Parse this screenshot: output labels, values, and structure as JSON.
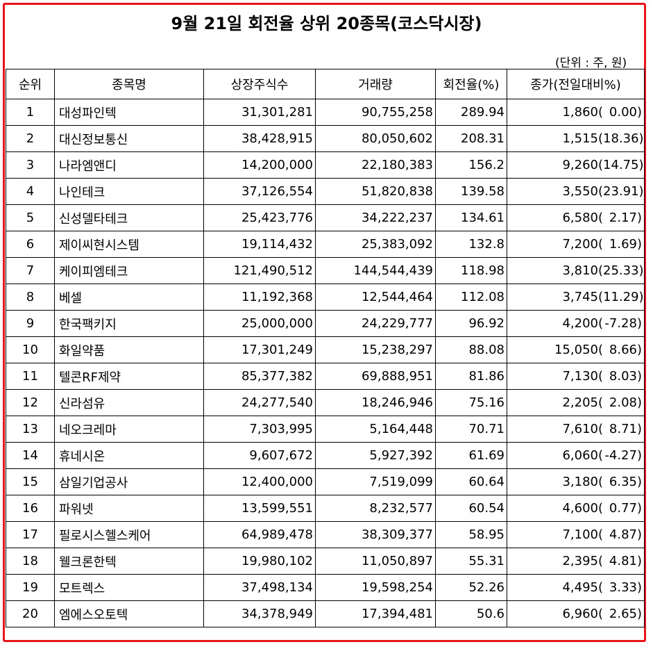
{
  "title": "9월 21일 회전율 상위 20종목(코스닥시장)",
  "unit": "(단위 : 주, 원)",
  "headers": {
    "rank": "순위",
    "name": "종목명",
    "listed": "상장주식수",
    "volume": "거래량",
    "turnover": "회전율(%)",
    "close": "종가(전일대비%)"
  },
  "rows": [
    {
      "rank": "1",
      "name": "대성파인텍",
      "listed": "31,301,281",
      "volume": "90,755,258",
      "turnover": "289.94",
      "price": "1,860(",
      "change": "0.00)"
    },
    {
      "rank": "2",
      "name": "대신정보통신",
      "listed": "38,428,915",
      "volume": "80,050,602",
      "turnover": "208.31",
      "price": "1,515(",
      "change": "18.36)"
    },
    {
      "rank": "3",
      "name": "나라엠앤디",
      "listed": "14,200,000",
      "volume": "22,180,383",
      "turnover": "156.2",
      "price": "9,260(",
      "change": "14.75)"
    },
    {
      "rank": "4",
      "name": "나인테크",
      "listed": "37,126,554",
      "volume": "51,820,838",
      "turnover": "139.58",
      "price": "3,550(",
      "change": "23.91)"
    },
    {
      "rank": "5",
      "name": "신성델타테크",
      "listed": "25,423,776",
      "volume": "34,222,237",
      "turnover": "134.61",
      "price": "6,580(",
      "change": "2.17)"
    },
    {
      "rank": "6",
      "name": "제이씨현시스템",
      "listed": "19,114,432",
      "volume": "25,383,092",
      "turnover": "132.8",
      "price": "7,200(",
      "change": "1.69)"
    },
    {
      "rank": "7",
      "name": "케이피엠테크",
      "listed": "121,490,512",
      "volume": "144,544,439",
      "turnover": "118.98",
      "price": "3,810(",
      "change": "25.33)"
    },
    {
      "rank": "8",
      "name": "베셀",
      "listed": "11,192,368",
      "volume": "12,544,464",
      "turnover": "112.08",
      "price": "3,745(",
      "change": "11.29)"
    },
    {
      "rank": "9",
      "name": "한국팩키지",
      "listed": "25,000,000",
      "volume": "24,229,777",
      "turnover": "96.92",
      "price": "4,200(",
      "change": "-7.28)"
    },
    {
      "rank": "10",
      "name": "화일약품",
      "listed": "17,301,249",
      "volume": "15,238,297",
      "turnover": "88.08",
      "price": "15,050(",
      "change": "8.66)"
    },
    {
      "rank": "11",
      "name": "텔콘RF제약",
      "listed": "85,377,382",
      "volume": "69,888,951",
      "turnover": "81.86",
      "price": "7,130(",
      "change": "8.03)"
    },
    {
      "rank": "12",
      "name": "신라섬유",
      "listed": "24,277,540",
      "volume": "18,246,946",
      "turnover": "75.16",
      "price": "2,205(",
      "change": "2.08)"
    },
    {
      "rank": "13",
      "name": "네오크레마",
      "listed": "7,303,995",
      "volume": "5,164,448",
      "turnover": "70.71",
      "price": "7,610(",
      "change": "8.71)"
    },
    {
      "rank": "14",
      "name": "휴네시온",
      "listed": "9,607,672",
      "volume": "5,927,392",
      "turnover": "61.69",
      "price": "6,060(",
      "change": "-4.27)"
    },
    {
      "rank": "15",
      "name": "삼일기업공사",
      "listed": "12,400,000",
      "volume": "7,519,099",
      "turnover": "60.64",
      "price": "3,180(",
      "change": "6.35)"
    },
    {
      "rank": "16",
      "name": "파워넷",
      "listed": "13,599,551",
      "volume": "8,232,577",
      "turnover": "60.54",
      "price": "4,600(",
      "change": "0.77)"
    },
    {
      "rank": "17",
      "name": "필로시스헬스케어",
      "listed": "64,989,478",
      "volume": "38,309,377",
      "turnover": "58.95",
      "price": "7,100(",
      "change": "4.87)"
    },
    {
      "rank": "18",
      "name": "웰크론한텍",
      "listed": "19,980,102",
      "volume": "11,050,897",
      "turnover": "55.31",
      "price": "2,395(",
      "change": "4.81)"
    },
    {
      "rank": "19",
      "name": "모트렉스",
      "listed": "37,498,134",
      "volume": "19,598,254",
      "turnover": "52.26",
      "price": "4,495(",
      "change": "3.33)"
    },
    {
      "rank": "20",
      "name": "엠에스오토텍",
      "listed": "34,378,949",
      "volume": "17,394,481",
      "turnover": "50.6",
      "price": "6,960(",
      "change": "2.65)"
    }
  ]
}
